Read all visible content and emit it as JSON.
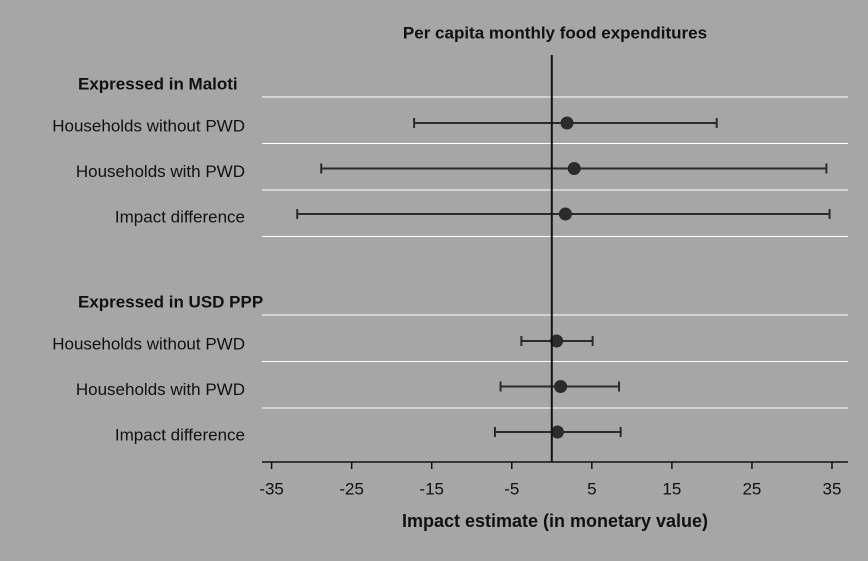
{
  "chart_data": {
    "type": "forest",
    "title": "Per capita monthly food expenditures",
    "xlabel": "Impact estimate (in monetary value)",
    "xlim": [
      -36.2,
      37
    ],
    "xticks": [
      -35,
      -25,
      -15,
      -5,
      5,
      15,
      25,
      35
    ],
    "reference": 0,
    "color": "#2b2b2b",
    "groups": [
      {
        "name": "Expressed in Maloti",
        "categories": [
          "Households without PWD",
          "Households with PWD",
          "Impact difference"
        ],
        "values": [
          1.9,
          2.8,
          1.7
        ],
        "low": [
          -17.2,
          -28.8,
          -31.8
        ],
        "high": [
          20.6,
          34.3,
          34.7
        ]
      },
      {
        "name": "Expressed in USD PPP",
        "categories": [
          "Households without PWD",
          "Households with PWD",
          "Impact difference"
        ],
        "values": [
          0.6,
          1.1,
          0.7
        ],
        "low": [
          -3.8,
          -6.4,
          -7.1
        ],
        "high": [
          5.1,
          8.4,
          8.6
        ]
      }
    ]
  }
}
